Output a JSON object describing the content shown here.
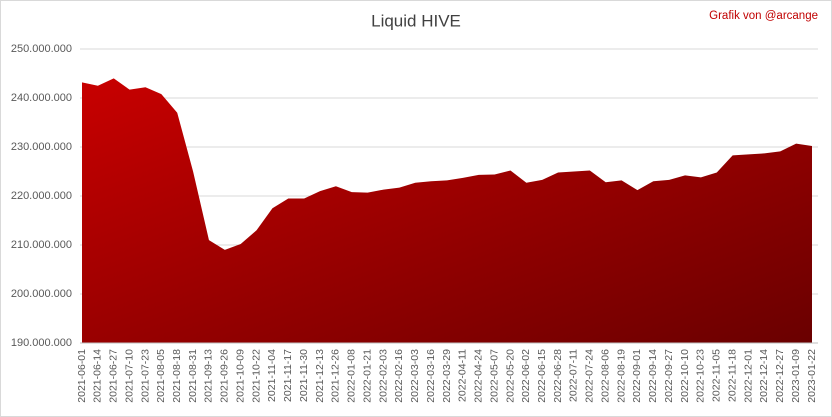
{
  "chart_data": {
    "type": "area",
    "title": "Liquid HIVE",
    "annotation": "Grafik von @arcange",
    "categories": [
      "2021-06-01",
      "2021-06-14",
      "2021-06-27",
      "2021-07-10",
      "2021-07-23",
      "2021-08-05",
      "2021-08-18",
      "2021-08-31",
      "2021-09-13",
      "2021-09-26",
      "2021-10-09",
      "2021-10-22",
      "2021-11-04",
      "2021-11-17",
      "2021-11-30",
      "2021-12-13",
      "2021-12-26",
      "2022-01-08",
      "2022-01-21",
      "2022-02-03",
      "2022-02-16",
      "2022-03-03",
      "2022-03-16",
      "2022-03-29",
      "2022-04-11",
      "2022-04-24",
      "2022-05-07",
      "2022-05-20",
      "2022-06-02",
      "2022-06-15",
      "2022-06-28",
      "2022-07-11",
      "2022-07-24",
      "2022-08-06",
      "2022-08-19",
      "2022-09-01",
      "2022-09-14",
      "2022-09-27",
      "2022-10-10",
      "2022-10-23",
      "2022-11-05",
      "2022-11-18",
      "2022-12-01",
      "2022-12-14",
      "2022-12-27",
      "2023-01-09",
      "2023-01-22"
    ],
    "values": [
      243200000,
      242500000,
      244000000,
      241700000,
      242200000,
      240800000,
      237000000,
      225000000,
      211000000,
      209000000,
      210200000,
      213000000,
      217500000,
      219500000,
      219500000,
      221000000,
      222000000,
      220800000,
      220700000,
      221300000,
      221700000,
      222700000,
      223000000,
      223200000,
      223700000,
      224300000,
      224400000,
      225200000,
      222700000,
      223300000,
      224800000,
      225000000,
      225200000,
      222800000,
      223200000,
      221200000,
      223000000,
      223300000,
      224200000,
      223800000,
      224800000,
      228300000,
      228500000,
      228700000,
      229100000,
      230700000,
      230200000
    ],
    "color": "#c00000",
    "ylim": [
      190000000,
      250000000
    ],
    "yticks": [
      {
        "value": 190000000,
        "label": "190.000.000"
      },
      {
        "value": 200000000,
        "label": "200.000.000"
      },
      {
        "value": 210000000,
        "label": "210.000.000"
      },
      {
        "value": 220000000,
        "label": "220.000.000"
      },
      {
        "value": 230000000,
        "label": "230.000.000"
      },
      {
        "value": 240000000,
        "label": "240.000.000"
      },
      {
        "value": 250000000,
        "label": "250.000.000"
      }
    ],
    "grid": true
  }
}
